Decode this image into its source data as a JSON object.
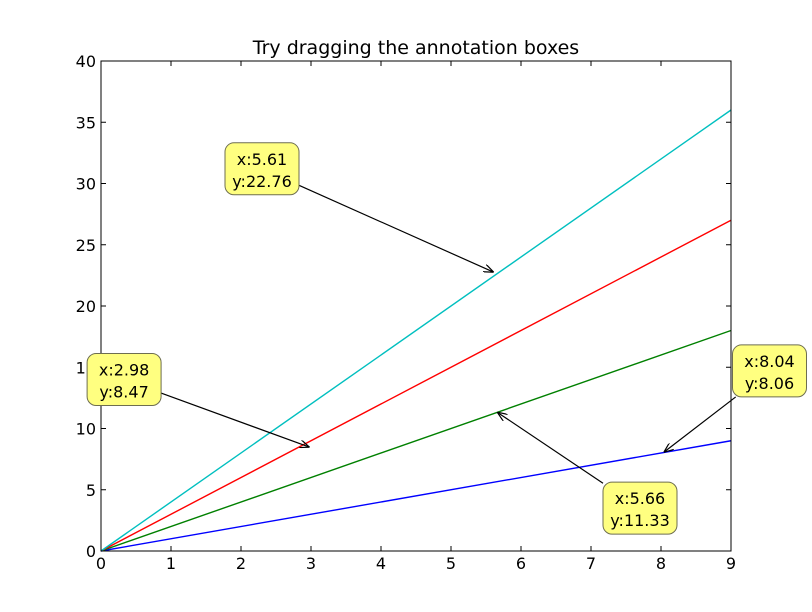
{
  "chart_data": {
    "type": "line",
    "title": "Try dragging the annotation boxes",
    "xlabel": "",
    "ylabel": "",
    "xlim": [
      0,
      9
    ],
    "ylim": [
      0,
      40
    ],
    "xticks": [
      "0",
      "1",
      "2",
      "3",
      "4",
      "5",
      "6",
      "7",
      "8",
      "9"
    ],
    "yticks": [
      "0",
      "5",
      "10",
      "15",
      "20",
      "25",
      "30",
      "35",
      "40"
    ],
    "grid": false,
    "legend": "none",
    "series": [
      {
        "color": "#0000ff",
        "x": [
          0,
          9
        ],
        "y": [
          0,
          9
        ]
      },
      {
        "color": "#008000",
        "x": [
          0,
          9
        ],
        "y": [
          0,
          18
        ]
      },
      {
        "color": "#ff0000",
        "x": [
          0,
          9
        ],
        "y": [
          0,
          27
        ]
      },
      {
        "color": "#00bfbf",
        "x": [
          0,
          9
        ],
        "y": [
          0,
          36
        ]
      }
    ],
    "annotations": [
      {
        "line1": "x:5.61",
        "line2": "y:22.76",
        "point": [
          5.61,
          22.76
        ],
        "box_center": [
          2.3,
          31.2
        ]
      },
      {
        "line1": "x:2.98",
        "line2": "y:8.47",
        "point": [
          2.98,
          8.47
        ],
        "box_center": [
          0.33,
          14.0
        ]
      },
      {
        "line1": "x:5.66",
        "line2": "y:11.33",
        "point": [
          5.66,
          11.33
        ],
        "box_center": [
          7.7,
          3.5
        ]
      },
      {
        "line1": "x:8.04",
        "line2": "y:8.06",
        "point": [
          8.04,
          8.06
        ],
        "box_center": [
          9.55,
          14.7
        ]
      }
    ],
    "annotation_box_color": "#ffff80"
  }
}
